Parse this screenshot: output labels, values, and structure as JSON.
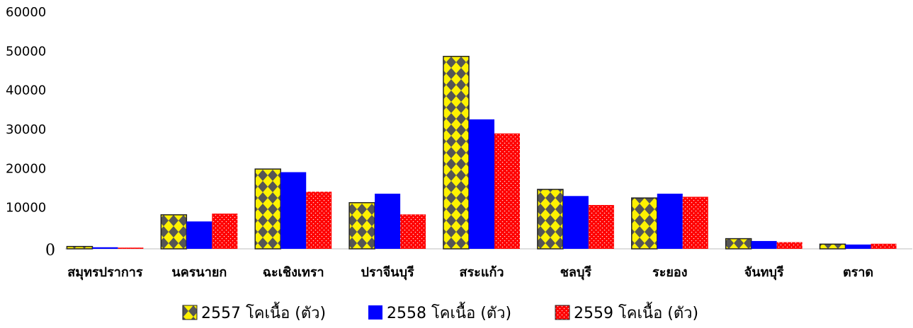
{
  "chart_data": {
    "type": "bar",
    "title": "",
    "xlabel": "",
    "ylabel": "",
    "categories": [
      "สมุทรปราการ",
      "นครนายก",
      "ฉะเชิงเทรา",
      "ปราจีนบุรี",
      "สระแก้ว",
      "ชลบุรี",
      "ระยอง",
      "จันทบุรี",
      "ตราด"
    ],
    "series": [
      {
        "name": "2557 โคเนื้อ (ตัว)",
        "values": [
          600,
          8700,
          20400,
          11800,
          49200,
          15200,
          13000,
          2600,
          1200
        ],
        "color": "#FFF200",
        "pattern": "diamond"
      },
      {
        "name": "2558 โคเนื้อ (ตัว)",
        "values": [
          400,
          7000,
          19600,
          14100,
          33100,
          13500,
          14100,
          2000,
          1100
        ],
        "color": "#0000FF",
        "pattern": "solid"
      },
      {
        "name": "2559 โคเนื้อ (ตัว)",
        "values": [
          300,
          9000,
          14600,
          8800,
          29500,
          11200,
          13300,
          1700,
          1300
        ],
        "color": "#FF0000",
        "pattern": "dots"
      }
    ],
    "y_ticks": [
      "0",
      "10000",
      "20000",
      "30000",
      "40000",
      "50000",
      "60000"
    ],
    "ylim": [
      0,
      60000
    ],
    "grid": false,
    "legend_position": "bottom"
  }
}
